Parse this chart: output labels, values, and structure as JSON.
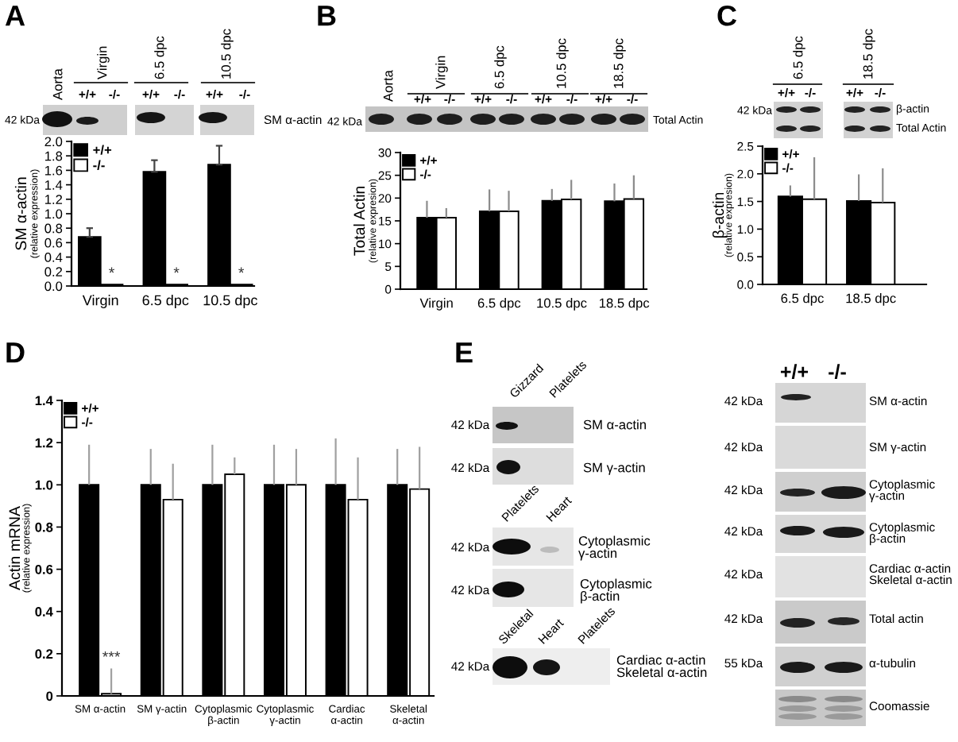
{
  "chart_data": [
    {
      "type": "bar",
      "title": "A",
      "categories": [
        "Virgin",
        "6.5 dpc",
        "10.5 dpc"
      ],
      "series": [
        {
          "name": "+/+",
          "color": "#000000",
          "values": [
            0.68,
            1.58,
            1.68
          ],
          "errors": [
            [
              0.68,
              0.8
            ],
            [
              1.58,
              1.74
            ],
            [
              1.68,
              1.94
            ]
          ]
        },
        {
          "name": "-/-",
          "color": "#ffffff",
          "values": [
            0.02,
            0.02,
            0.02
          ],
          "value_labels": [
            "*",
            "*",
            "*"
          ]
        }
      ],
      "ylabel": "SM α-actin\n(relative expression)",
      "ylim": [
        0.0,
        2.0
      ],
      "yticks": [
        {
          "value": 0,
          "label": "0.0"
        },
        0.2,
        0.4,
        0.6,
        0.8,
        {
          "value": 1,
          "label": "1.0"
        },
        1.2,
        1.4,
        1.6,
        1.8,
        {
          "value": 2,
          "label": "2.0"
        }
      ],
      "legend": "top left",
      "annotations": [
        "42 kDa",
        "SM α-actin",
        "Aorta",
        "Virgin",
        "6.5 dpc",
        "10.5 dpc",
        "+/+",
        "-/-",
        "+/+",
        "-/-",
        "+/+",
        "-/-"
      ]
    },
    {
      "type": "bar",
      "title": "B",
      "categories": [
        "Virgin",
        "6.5 dpc",
        "10.5 dpc",
        "18.5 dpc"
      ],
      "series": [
        {
          "name": "+/+",
          "color": "#000000",
          "values": [
            15.7,
            17.1,
            19.4,
            19.3
          ],
          "errors": [
            [
              15.7,
              19.4
            ],
            [
              17.1,
              21.9
            ],
            [
              19.4,
              22.0
            ],
            [
              19.3,
              23.2
            ]
          ]
        },
        {
          "name": "-/-",
          "color": "#ffffff",
          "values": [
            15.7,
            17.1,
            19.7,
            19.8
          ],
          "errors": [
            [
              15.7,
              17.8
            ],
            [
              17.1,
              21.6
            ],
            [
              19.7,
              24.0
            ],
            [
              19.8,
              25.0
            ]
          ]
        }
      ],
      "ylabel": "Total Actin\n(relative expresion)",
      "ylim": [
        0,
        30
      ],
      "yticks": [
        0,
        5,
        10,
        15,
        20,
        25,
        30
      ],
      "legend": "top left",
      "annotations": [
        "Aorta",
        "Virgin",
        "6.5 dpc",
        "10.5 dpc",
        "18.5 dpc",
        "+/+",
        "-/-",
        "+/+",
        "-/-",
        "+/+",
        "-/-",
        "+/+",
        "-/-",
        "42 kDa",
        "Total Actin"
      ]
    },
    {
      "type": "bar",
      "title": "C",
      "categories": [
        "6.5 dpc",
        "18.5 dpc"
      ],
      "series": [
        {
          "name": "+/+",
          "color": "#000000",
          "values": [
            1.59,
            1.51
          ],
          "errors": [
            [
              1.59,
              1.79
            ],
            [
              1.51,
              1.99
            ]
          ]
        },
        {
          "name": "-/-",
          "color": "#ffffff",
          "values": [
            1.54,
            1.48
          ],
          "errors": [
            [
              1.54,
              2.3
            ],
            [
              1.48,
              2.1
            ]
          ]
        }
      ],
      "ylabel": "β-actin\n(relative expresion)",
      "ylim": [
        0.0,
        2.5
      ],
      "yticks": [
        {
          "value": 0,
          "label": "0.0"
        },
        0.5,
        {
          "value": 1,
          "label": "1.0"
        },
        1.5,
        {
          "value": 2,
          "label": "2.0"
        },
        2.5
      ],
      "legend": "top left",
      "annotations": [
        "6.5 dpc",
        "18.5 dpc",
        "+/+",
        "-/-",
        "+/+",
        "-/-",
        "42 kDa",
        "β-actin",
        "Total Actin"
      ]
    },
    {
      "type": "bar",
      "title": "D",
      "categories": [
        "SM α-actin",
        "SM γ-actin",
        "Cytoplasmic\nβ-actin",
        "Cytoplasmic\nγ-actin",
        "Cardiac\nα-actin",
        "Skeletal\nα-actin"
      ],
      "series": [
        {
          "name": "+/+",
          "color": "#000000",
          "values": [
            1.0,
            1.0,
            1.0,
            1.0,
            1.0,
            1.0
          ],
          "errors": [
            [
              1.0,
              1.19
            ],
            [
              1.0,
              1.17
            ],
            [
              1.0,
              1.19
            ],
            [
              1.0,
              1.19
            ],
            [
              1.0,
              1.22
            ],
            [
              1.0,
              1.17
            ]
          ]
        },
        {
          "name": "-/-",
          "color": "#ffffff",
          "values": [
            0.01,
            0.93,
            1.05,
            1.0,
            0.93,
            0.98
          ],
          "errors": [
            [
              0.01,
              0.13
            ],
            [
              0.93,
              1.1
            ],
            [
              1.05,
              1.13
            ],
            [
              1.0,
              1.17
            ],
            [
              0.93,
              1.13
            ],
            [
              0.98,
              1.18
            ]
          ],
          "value_labels": [
            "***",
            null,
            null,
            null,
            null,
            null
          ]
        }
      ],
      "ylabel": "Actin mRNA\n(relative expression)",
      "ylim": [
        0,
        1.4
      ],
      "yticks": [
        0,
        0.2,
        0.4,
        0.6,
        0.8,
        {
          "value": 1,
          "label": "1.0"
        },
        1.2,
        1.4
      ],
      "legend": "top left"
    },
    {
      "type": "other",
      "title": "E",
      "annotations": [
        "Gizzard",
        "Platelets",
        "42 kDa",
        "SM α-actin",
        "42 kDa",
        "SM γ-actin",
        "Platelets",
        "Heart",
        "42 kDa",
        "Cytoplasmic\nγ-actin",
        "42 kDa",
        "Cytoplasmic\nβ-actin",
        "Skeletal",
        "Heart",
        "Platelets",
        "42 kDa",
        "Cardiac α-actin\nSkeletal α-actin",
        "+/+",
        "-/-",
        "42 kDa",
        "SM α-actin",
        "42 kDa",
        "SM γ-actin",
        "42 kDa",
        "Cytoplasmic\nγ-actin",
        "42 kDa",
        "Cytoplasmic\nβ-actin",
        "42 kDa",
        "Cardiac α-actin\nSkeletal α-actin",
        "42 kDa",
        "Total actin",
        "55 kDa",
        "α-tubulin",
        "Coomassie"
      ]
    }
  ]
}
